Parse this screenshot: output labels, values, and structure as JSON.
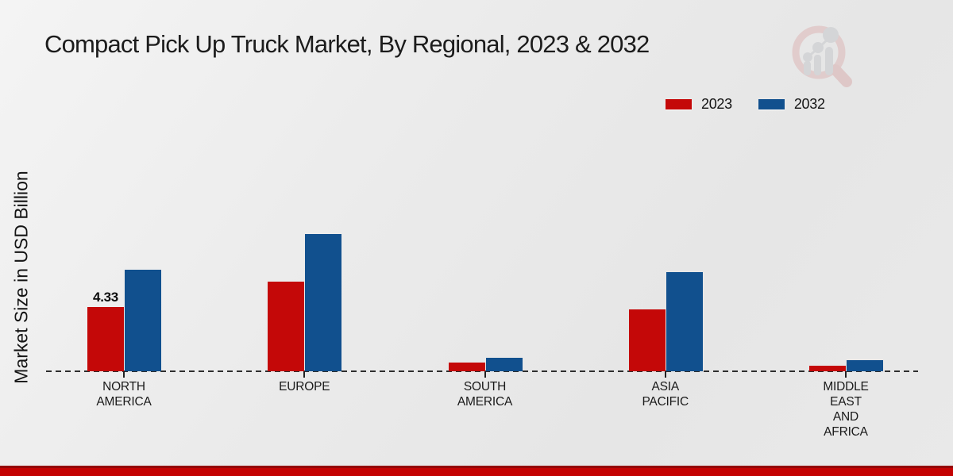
{
  "page": {
    "title": "Compact Pick Up Truck Market, By Regional, 2023 & 2032"
  },
  "legend": {
    "items": [
      {
        "label": "2023",
        "color": "#c40808"
      },
      {
        "label": "2032",
        "color": "#11508e"
      }
    ]
  },
  "colors": {
    "series_2023": "#c40808",
    "series_2032": "#11508e",
    "footer_accent": "#c40202",
    "footer_accent_dark": "#940707",
    "background": "#e9e9e9"
  },
  "watermark": {
    "name": "market-research-future-logo"
  },
  "chart_data": {
    "type": "bar",
    "title": "Compact Pick Up Truck Market, By Regional, 2023 & 2032",
    "xlabel": "",
    "ylabel": "Market Size in USD Billion",
    "categories": [
      "NORTH AMERICA",
      "EUROPE",
      "SOUTH AMERICA",
      "ASIA PACIFIC",
      "MIDDLE EAST AND AFRICA"
    ],
    "category_label_lines": [
      [
        "NORTH",
        "AMERICA"
      ],
      [
        "EUROPE"
      ],
      [
        "SOUTH",
        "AMERICA"
      ],
      [
        "ASIA",
        "PACIFIC"
      ],
      [
        "MIDDLE",
        "EAST",
        "AND",
        "AFRICA"
      ]
    ],
    "series": [
      {
        "name": "2023",
        "color": "#c40808",
        "values": [
          4.33,
          6.1,
          0.6,
          4.2,
          0.4
        ]
      },
      {
        "name": "2032",
        "color": "#11508e",
        "values": [
          6.9,
          9.3,
          0.9,
          6.7,
          0.75
        ]
      }
    ],
    "data_labels": [
      {
        "series": "2023",
        "category": "NORTH AMERICA",
        "text": "4.33"
      }
    ],
    "ylim": [
      0,
      10
    ],
    "grid": false,
    "baseline_style": "dashed",
    "legend_position": "top-right",
    "units": "USD Billion"
  }
}
